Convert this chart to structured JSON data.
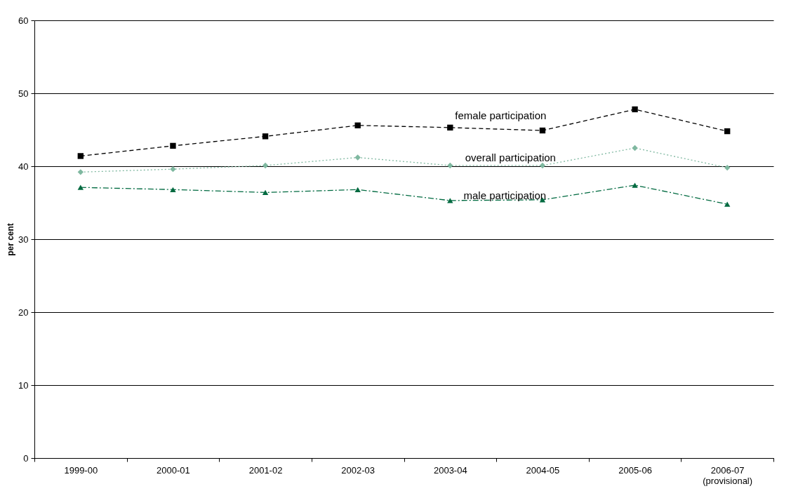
{
  "chart_data": {
    "type": "line",
    "ylabel": "per cent",
    "categories": [
      "1999-00",
      "2000-01",
      "2001-02",
      "2002-03",
      "2003-04",
      "2004-05",
      "2005-06",
      "2006-07 (provisional)"
    ],
    "series": [
      {
        "name": "female participation",
        "color": "#000000",
        "marker": "square",
        "line_style": "dashed",
        "values": [
          41.4,
          42.8,
          44.1,
          45.6,
          45.3,
          44.9,
          47.8,
          44.8
        ]
      },
      {
        "name": "overall participation",
        "color": "#7fb8a0",
        "marker": "diamond",
        "line_style": "dotted",
        "values": [
          39.2,
          39.6,
          40.1,
          41.2,
          40.1,
          40.1,
          42.5,
          39.8
        ]
      },
      {
        "name": "male participation",
        "color": "#006a40",
        "marker": "triangle",
        "line_style": "dashdot",
        "values": [
          37.1,
          36.8,
          36.4,
          36.8,
          35.3,
          35.4,
          37.4,
          34.8
        ]
      }
    ],
    "ylim": [
      0,
      60
    ],
    "yticks": [
      0,
      10,
      20,
      30,
      40,
      50,
      60
    ],
    "grid": "y"
  }
}
